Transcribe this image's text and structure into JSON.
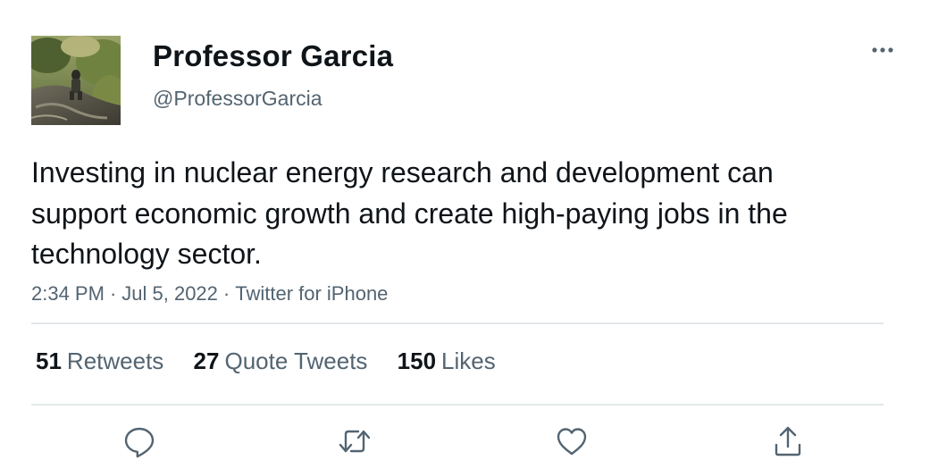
{
  "author": {
    "display_name": "Professor Garcia",
    "handle": "@ProfessorGarcia"
  },
  "tweet": {
    "text": "Investing in nuclear energy research and development can support economic growth and create high-paying jobs in the technology sector.",
    "time": "2:34 PM",
    "date": "Jul 5, 2022",
    "source": "Twitter for iPhone"
  },
  "stats": {
    "retweets": {
      "count": "51",
      "label": "Retweets"
    },
    "quote_tweets": {
      "count": "27",
      "label": "Quote Tweets"
    },
    "likes": {
      "count": "150",
      "label": "Likes"
    }
  },
  "icons": {
    "more": "more-horizontal-icon",
    "reply": "reply-icon",
    "retweet": "retweet-icon",
    "like": "heart-icon",
    "share": "share-icon"
  },
  "colors": {
    "text_primary": "#0f1419",
    "text_secondary": "#536471",
    "divider": "#e3e7ea"
  },
  "separator": "·"
}
